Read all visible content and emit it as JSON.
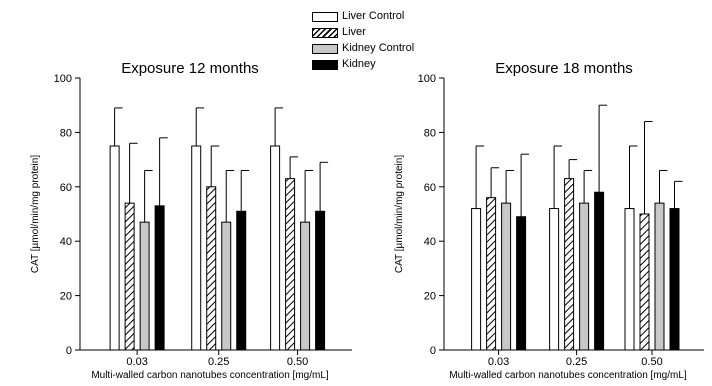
{
  "legend": {
    "items": [
      {
        "label": "Liver Control",
        "pattern": "white"
      },
      {
        "label": "Liver",
        "pattern": "hatched"
      },
      {
        "label": "Kidney Control",
        "pattern": "gray"
      },
      {
        "label": "Kidney",
        "pattern": "black"
      }
    ]
  },
  "colors": {
    "white": "#ffffff",
    "gray": "#c8c8c8",
    "black": "#000000",
    "axis": "#000000"
  },
  "chart_data": [
    {
      "type": "bar",
      "title": "Exposure 12 months",
      "xlabel": "Multi-walled carbon nanotubes concentration [mg/mL]",
      "ylabel": "CAT [µmol/min/mg protein]",
      "ylim": [
        0,
        100
      ],
      "yticks": [
        0,
        20,
        40,
        60,
        80,
        100
      ],
      "categories": [
        "0.03",
        "0.25",
        "0.50"
      ],
      "error_bars": "upper",
      "series": [
        {
          "name": "Liver Control",
          "values": [
            75,
            75,
            75
          ],
          "errors": [
            14,
            14,
            14
          ]
        },
        {
          "name": "Liver",
          "values": [
            54,
            60,
            63
          ],
          "errors": [
            22,
            15,
            8
          ]
        },
        {
          "name": "Kidney Control",
          "values": [
            47,
            47,
            47
          ],
          "errors": [
            19,
            19,
            19
          ]
        },
        {
          "name": "Kidney",
          "values": [
            53,
            51,
            51
          ],
          "errors": [
            25,
            15,
            18
          ]
        }
      ]
    },
    {
      "type": "bar",
      "title": "Exposure 18 months",
      "xlabel": "Multi-walled carbon nanotubes concentration [mg/mL]",
      "ylabel": "CAT [µmol/min/mg protein]",
      "ylim": [
        0,
        100
      ],
      "yticks": [
        0,
        20,
        40,
        60,
        80,
        100
      ],
      "categories": [
        "0.03",
        "0.25",
        "0.50"
      ],
      "error_bars": "upper",
      "series": [
        {
          "name": "Liver Control",
          "values": [
            52,
            52,
            52
          ],
          "errors": [
            23,
            23,
            23
          ]
        },
        {
          "name": "Liver",
          "values": [
            56,
            63,
            50
          ],
          "errors": [
            11,
            7,
            34
          ]
        },
        {
          "name": "Kidney Control",
          "values": [
            54,
            54,
            54
          ],
          "errors": [
            12,
            12,
            12
          ]
        },
        {
          "name": "Kidney",
          "values": [
            49,
            58,
            52
          ],
          "errors": [
            23,
            32,
            10
          ]
        }
      ]
    }
  ]
}
